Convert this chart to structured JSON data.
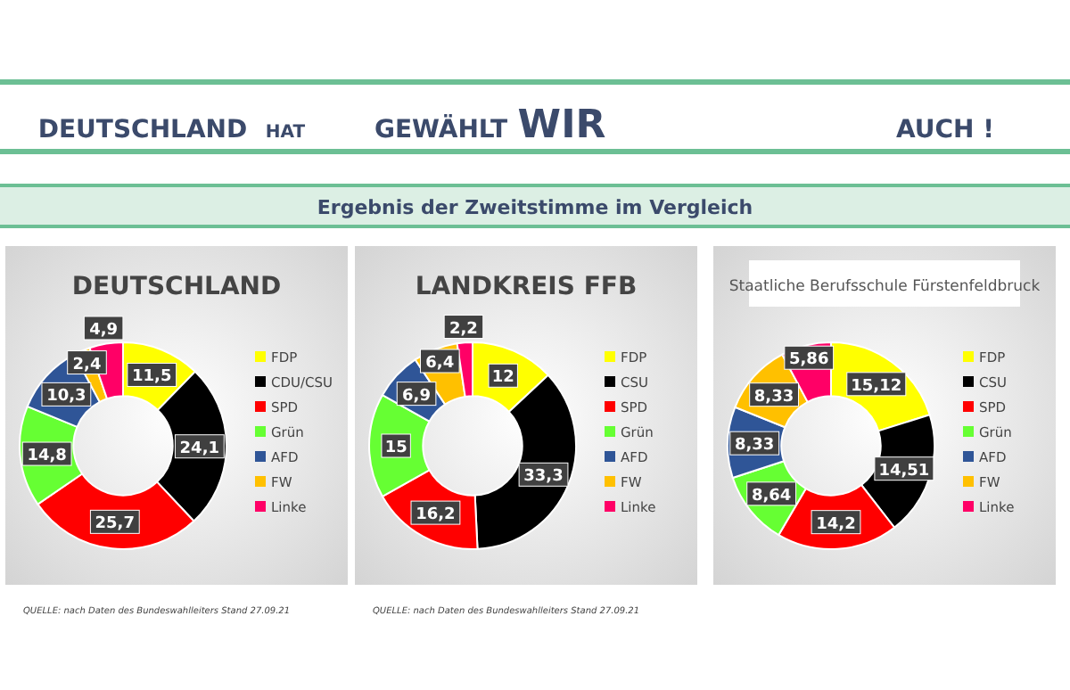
{
  "chart_data": [
    {
      "type": "other",
      "title": "Ergebnis der Zweitstimme im Vergleich",
      "annotations": [
        "DEUTSCHLAND",
        "HAT",
        "GEWÄHLT",
        "WIR",
        "AUCH !"
      ]
    },
    {
      "type": "donut",
      "title": "DEUTSCHLAND",
      "categories": [
        "FDP",
        "CDU/CSU",
        "SPD",
        "Grün",
        "AFD",
        "FW",
        "Linke"
      ],
      "values": [
        11.5,
        24.1,
        25.7,
        14.8,
        10.3,
        2.4,
        4.9
      ],
      "value_labels": [
        "11,5",
        "24,1",
        "25,7",
        "14,8",
        "10,3",
        "2,4",
        "4,9"
      ],
      "colors": [
        "#ffff00",
        "#000000",
        "#ff0000",
        "#66ff33",
        "#2f5597",
        "#ffc000",
        "#ff0066"
      ],
      "legend": "right",
      "annotations": [
        "QUELLE: nach Daten des Bundeswahlleiters Stand 27.09.21"
      ]
    },
    {
      "type": "donut",
      "title": "LANDKREIS FFB",
      "categories": [
        "FDP",
        "CSU",
        "SPD",
        "Grün",
        "AFD",
        "FW",
        "Linke"
      ],
      "values": [
        12,
        33.3,
        16.2,
        15,
        6.9,
        6.4,
        2.2
      ],
      "value_labels": [
        "12",
        "33,3",
        "16,2",
        "15",
        "6,9",
        "6,4",
        "2,2"
      ],
      "colors": [
        "#ffff00",
        "#000000",
        "#ff0000",
        "#66ff33",
        "#2f5597",
        "#ffc000",
        "#ff0066"
      ],
      "legend": "right",
      "annotations": [
        "QUELLE: nach Daten des Bundeswahlleiters Stand 27.09.21"
      ]
    },
    {
      "type": "donut",
      "title": "Staatliche Berufsschule Fürstenfeldbruck",
      "categories": [
        "FDP",
        "CSU",
        "SPD",
        "Grün",
        "AFD",
        "FW",
        "Linke"
      ],
      "values": [
        15.12,
        14.51,
        14.2,
        8.64,
        8.33,
        8.33,
        5.86
      ],
      "value_labels": [
        "15,12",
        "14,51",
        "14,2",
        "8,64",
        "8,33",
        "8,33",
        "5,86"
      ],
      "colors": [
        "#ffff00",
        "#000000",
        "#ff0000",
        "#66ff33",
        "#2f5597",
        "#ffc000",
        "#ff0066"
      ],
      "legend": "right"
    }
  ]
}
